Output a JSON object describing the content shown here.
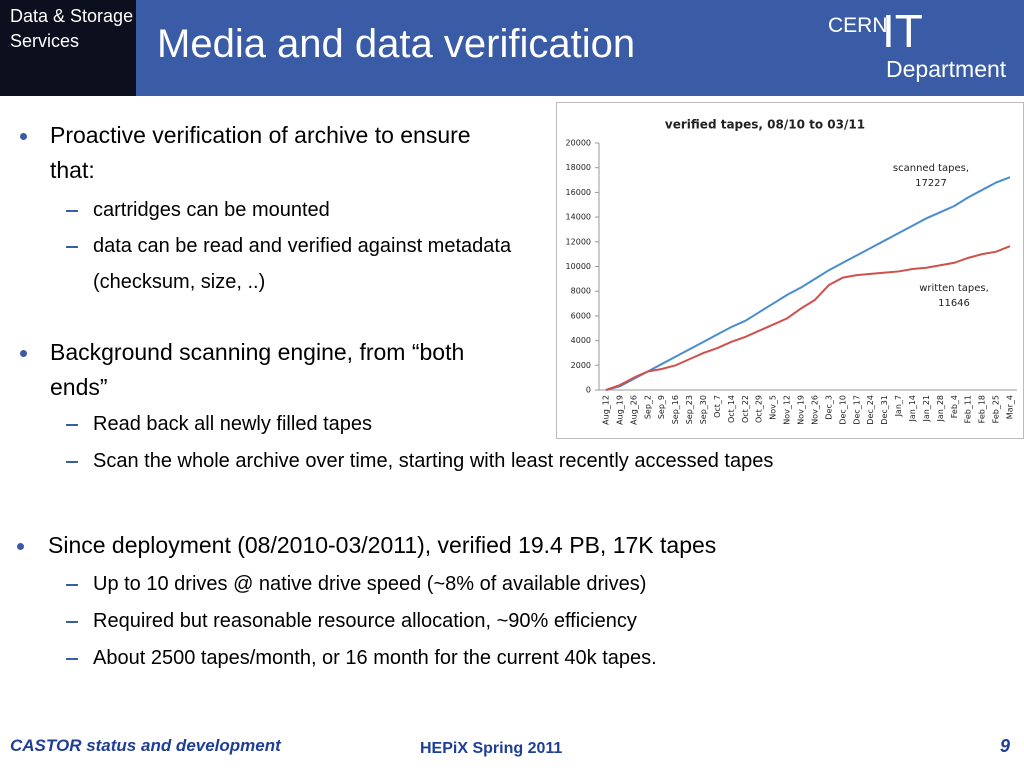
{
  "header": {
    "badge": "Data & Storage Services",
    "title": "Media and data verification",
    "logo_top": "CERN",
    "logo_it": "IT",
    "logo_bottom": "Department"
  },
  "body": {
    "groups": [
      {
        "text": "Proactive verification of archive to ensure that:",
        "sub": [
          "cartridges can be mounted",
          "data can be read and verified against metadata (checksum, size, ..)"
        ]
      },
      {
        "text": "Background scanning engine, from “both ends”",
        "sub": [
          "Read back all newly filled tapes",
          "Scan the whole archive over time, starting with least recently accessed tapes"
        ]
      },
      {
        "text": "Since deployment (08/2010-03/2011), verified 19.4 PB, 17K tapes",
        "sub": [
          "Up to 10 drives @ native drive speed (~8% of available drives)",
          "Required but reasonable resource allocation, ~90% efficiency",
          "About 2500 tapes/month, or 16 month for the current 40k tapes."
        ]
      }
    ]
  },
  "footer": {
    "left": "CASTOR status and development",
    "center": "HEPiX Spring 2011",
    "page": "9"
  },
  "chart_data": {
    "type": "line",
    "title": "verified tapes, 08/10 to 03/11",
    "categories": [
      "Aug_12",
      "Aug_19",
      "Aug_26",
      "Sep_2",
      "Sep_9",
      "Sep_16",
      "Sep_23",
      "Sep_30",
      "Oct_7",
      "Oct_14",
      "Oct_22",
      "Oct_29",
      "Nov_5",
      "Nov_12",
      "Nov_19",
      "Nov_26",
      "Dec_3",
      "Dec_10",
      "Dec_17",
      "Dec_24",
      "Dec_31",
      "Jan_7",
      "Jan_14",
      "Jan_21",
      "Jan_28",
      "Feb_4",
      "Feb_11",
      "Feb_18",
      "Feb_25",
      "Mar_4"
    ],
    "series": [
      {
        "name": "scanned tapes",
        "color": "#4a8cd0",
        "values": [
          0,
          300,
          900,
          1500,
          2100,
          2700,
          3300,
          3900,
          4500,
          5100,
          5600,
          6300,
          7000,
          7700,
          8300,
          9000,
          9700,
          10300,
          10900,
          11500,
          12100,
          12700,
          13300,
          13900,
          14400,
          14900,
          15600,
          16200,
          16800,
          17227
        ]
      },
      {
        "name": "written tapes",
        "color": "#d0504d",
        "values": [
          0,
          400,
          1000,
          1500,
          1700,
          2000,
          2500,
          3000,
          3400,
          3900,
          4300,
          4800,
          5300,
          5800,
          6600,
          7300,
          8500,
          9100,
          9300,
          9400,
          9500,
          9600,
          9800,
          9900,
          10100,
          10300,
          10700,
          11000,
          11200,
          11646
        ]
      }
    ],
    "annotations": [
      [
        "scanned tapes,",
        "17227"
      ],
      [
        "written tapes,",
        "11646"
      ]
    ],
    "ylim": [
      0,
      20000
    ],
    "yticks": [
      0,
      2000,
      4000,
      6000,
      8000,
      10000,
      12000,
      14000,
      16000,
      18000,
      20000
    ],
    "grid": false
  }
}
